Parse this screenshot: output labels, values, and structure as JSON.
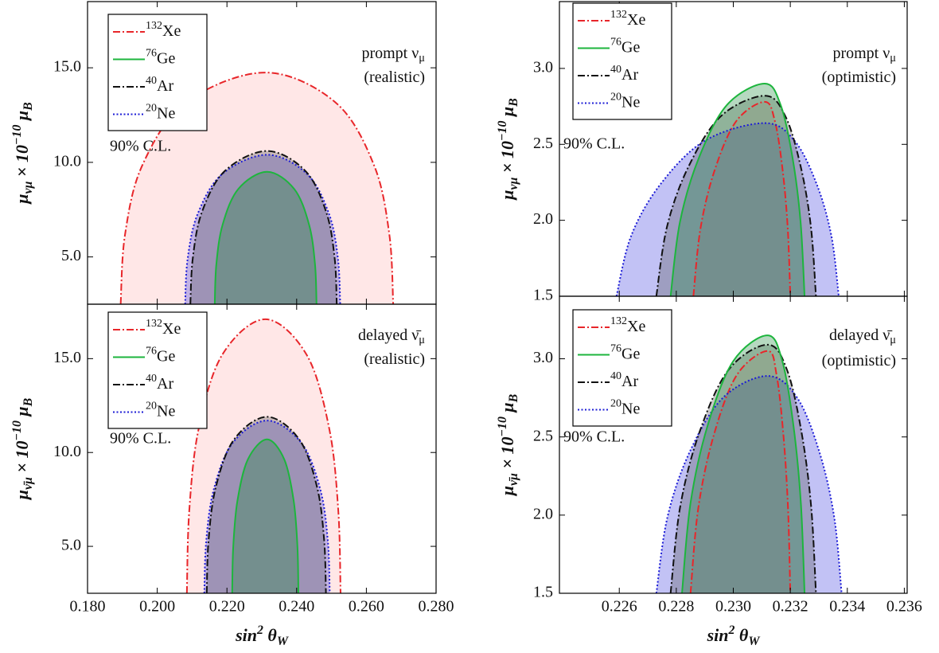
{
  "chart_data": [
    {
      "type": "contour",
      "xlim": [
        0.18,
        0.28
      ],
      "ylim": [
        2.5,
        18.5
      ],
      "xticks": [
        0.18,
        0.2,
        0.22,
        0.24,
        0.26,
        0.28
      ],
      "xtick_labels": false,
      "yticks": [
        {
          "value": 5,
          "label": "5.0"
        },
        {
          "value": 10,
          "label": "10.0"
        },
        {
          "value": 15,
          "label": "15.0"
        }
      ],
      "y_label": [
        {
          "t": "μ"
        },
        {
          "t": "νμ",
          "pos": "sub"
        },
        {
          "t": " × 10"
        },
        {
          "t": "−10",
          "pos": "sup"
        },
        {
          "t": " μ"
        },
        {
          "t": "B",
          "pos": "sub"
        }
      ],
      "annotation": [
        [
          {
            "t": "prompt ν"
          },
          {
            "t": "μ",
            "pos": "sub"
          }
        ],
        [
          {
            "t": "(realistic)"
          }
        ]
      ],
      "cl_label": "90% C.L.",
      "legend": "upper left",
      "series": [
        {
          "mass_number": "132",
          "name": "Xe",
          "color": "#e8262a",
          "fill": "#ffb3b3",
          "dash": "dashdot",
          "x": [
            0.1895,
            0.19075,
            0.19573,
            0.20818,
            0.231,
            0.25119,
            0.26219,
            0.2666,
            0.2677
          ],
          "values": [
            2.5,
            6.175,
            9.85,
            13.16,
            14.75,
            13.16,
            9.85,
            6.175,
            2.5
          ]
        },
        {
          "mass_number": "76",
          "name": "Ge",
          "color": "#1db53d",
          "fill": "#1d8a3a",
          "dash": "solid",
          "x": [
            0.2165,
            0.21695,
            0.21875,
            0.22325,
            0.2315,
            0.23931,
            0.24357,
            0.24527,
            0.2457
          ],
          "values": [
            2.5,
            4.6,
            6.7,
            8.59,
            9.5,
            8.59,
            6.7,
            4.6,
            2.5
          ]
        },
        {
          "mass_number": "40",
          "name": "Ar",
          "color": "#111111",
          "fill": "#555555",
          "dash": "dashdot",
          "x": [
            0.2095,
            0.2102,
            0.2128,
            0.2194,
            0.2315,
            0.2425,
            0.2485,
            0.2509,
            0.2515
          ],
          "values": [
            2.5,
            4.93,
            7.36,
            9.547,
            10.6,
            9.547,
            7.36,
            4.93,
            2.5
          ]
        },
        {
          "mass_number": "20",
          "name": "Ne",
          "color": "#1c1cd6",
          "fill": "#4040e0",
          "dash": "dotted",
          "x": [
            0.208,
            0.2087,
            0.21153,
            0.21858,
            0.2315,
            0.24305,
            0.24935,
            0.25187,
            0.2525
          ],
          "values": [
            2.5,
            4.87,
            7.24,
            9.373,
            10.4,
            9.373,
            7.24,
            4.87,
            2.5
          ]
        }
      ]
    },
    {
      "type": "contour",
      "xlim": [
        0.18,
        0.28
      ],
      "ylim": [
        2.5,
        17.9
      ],
      "xticks": [
        {
          "value": 0.18,
          "label": "0.180"
        },
        {
          "value": 0.2,
          "label": "0.200"
        },
        {
          "value": 0.22,
          "label": "0.220"
        },
        {
          "value": 0.24,
          "label": "0.240"
        },
        {
          "value": 0.26,
          "label": "0.260"
        },
        {
          "value": 0.28,
          "label": "0.280"
        }
      ],
      "yticks": [
        {
          "value": 5,
          "label": "5.0"
        },
        {
          "value": 10,
          "label": "10.0"
        },
        {
          "value": 15,
          "label": "15.0"
        }
      ],
      "x_label": [
        {
          "t": "sin"
        },
        {
          "t": "2",
          "pos": "sup"
        },
        {
          "t": " θ"
        },
        {
          "t": "W",
          "pos": "sub"
        }
      ],
      "y_label": [
        {
          "t": "μ"
        },
        {
          "t": "ν̄μ",
          "pos": "sub"
        },
        {
          "t": " × 10"
        },
        {
          "t": "−10",
          "pos": "sup"
        },
        {
          "t": " μ"
        },
        {
          "t": "B",
          "pos": "sub"
        }
      ],
      "annotation": [
        [
          {
            "t": "delayed ν̄"
          },
          {
            "t": "μ",
            "pos": "sub"
          }
        ],
        [
          {
            "t": "(realistic)"
          }
        ]
      ],
      "cl_label": "90% C.L.",
      "legend": "upper left",
      "series": [
        {
          "mass_number": "132",
          "name": "Xe",
          "color": "#e8262a",
          "fill": "#ffb3b3",
          "dash": "dashdot",
          "x": [
            0.2085,
            0.20918,
            0.21188,
            0.21863,
            0.231,
            0.24288,
            0.24936,
            0.25195,
            0.2526
          ],
          "values": [
            2.5,
            6.88,
            11.26,
            15.2,
            17.1,
            15.2,
            11.26,
            6.88,
            2.5
          ]
        },
        {
          "mass_number": "76",
          "name": "Ge",
          "color": "#1db53d",
          "fill": "#1d8a3a",
          "dash": "solid",
          "x": [
            0.2215,
            0.2218,
            0.223,
            0.226,
            0.2315,
            0.23645,
            0.23915,
            0.24023,
            0.2405
          ],
          "values": [
            2.5,
            4.96,
            7.42,
            9.63,
            10.7,
            9.63,
            7.42,
            4.96,
            2.5
          ]
        },
        {
          "mass_number": "40",
          "name": "Ar",
          "color": "#111111",
          "fill": "#555555",
          "dash": "dashdot",
          "x": [
            0.2142,
            0.21472,
            0.21679,
            0.22199,
            0.2315,
            0.2408,
            0.24587,
            0.24789,
            0.2484
          ],
          "values": [
            2.5,
            5.32,
            8.14,
            10.68,
            11.9,
            10.68,
            8.14,
            5.32,
            2.5
          ]
        },
        {
          "mass_number": "20",
          "name": "Ne",
          "color": "#1c1cd6",
          "fill": "#4040e0",
          "dash": "dotted",
          "x": [
            0.2135,
            0.21404,
            0.2162,
            0.2216,
            0.2315,
            0.2414,
            0.2468,
            0.24896,
            0.2495
          ],
          "values": [
            2.5,
            5.26,
            8.02,
            10.5,
            11.7,
            10.5,
            8.02,
            5.26,
            2.5
          ]
        }
      ]
    },
    {
      "type": "contour",
      "xlim": [
        0.2239,
        0.2361
      ],
      "ylim": [
        1.5,
        3.44
      ],
      "xticks": [
        0.226,
        0.228,
        0.23,
        0.232,
        0.234,
        0.236
      ],
      "xtick_labels": false,
      "yticks": [
        1.5,
        {
          "value": 2,
          "label": "2.0"
        },
        2.5,
        {
          "value": 3,
          "label": "3.0"
        }
      ],
      "y_label": [
        {
          "t": "μ"
        },
        {
          "t": "νμ",
          "pos": "sub"
        },
        {
          "t": " × 10"
        },
        {
          "t": "−10",
          "pos": "sup"
        },
        {
          "t": " μ"
        },
        {
          "t": "B",
          "pos": "sub"
        }
      ],
      "annotation": [
        [
          {
            "t": "prompt ν"
          },
          {
            "t": "μ",
            "pos": "sub"
          }
        ],
        [
          {
            "t": "(optimistic)"
          }
        ]
      ],
      "cl_label": "90% C.L.",
      "legend": "upper left",
      "series": [
        {
          "mass_number": "132",
          "name": "Xe",
          "color": "#e8262a",
          "fill": "#ffb3b3",
          "dash": "dashdot",
          "x": [
            0.2286,
            0.22885,
            0.22935,
            0.2301,
            0.2311,
            0.23146,
            0.23173,
            0.23191,
            0.232
          ],
          "values": [
            1.5,
            1.948,
            2.332,
            2.652,
            2.78,
            2.652,
            2.332,
            1.948,
            1.5
          ]
        },
        {
          "mass_number": "76",
          "name": "Ge",
          "color": "#1db53d",
          "fill": "#1d8a3a",
          "dash": "solid",
          "x": [
            0.2278,
            0.22813,
            0.22879,
            0.22978,
            0.2311,
            0.23166,
            0.23208,
            0.23236,
            0.2325
          ],
          "values": [
            1.5,
            1.99,
            2.41,
            2.76,
            2.9,
            2.76,
            2.41,
            1.99,
            1.5
          ]
        },
        {
          "mass_number": "40",
          "name": "Ar",
          "color": "#111111",
          "fill": "#555555",
          "dash": "dashdot",
          "x": [
            0.2273,
            0.22768,
            0.22844,
            0.22958,
            0.2311,
            0.23182,
            0.23236,
            0.23272,
            0.2329
          ],
          "values": [
            1.5,
            1.962,
            2.358,
            2.688,
            2.82,
            2.688,
            2.358,
            1.962,
            1.5
          ]
        },
        {
          "mass_number": "20",
          "name": "Ne",
          "color": "#1c1cd6",
          "fill": "#4040e0",
          "dash": "dotted",
          "x": [
            0.2259,
            0.22642,
            0.22746,
            0.22902,
            0.2311,
            0.23214,
            0.23292,
            0.23344,
            0.2337
          ],
          "values": [
            1.5,
            1.899,
            2.241,
            2.526,
            2.64,
            2.526,
            2.241,
            1.899,
            1.5
          ]
        }
      ]
    },
    {
      "type": "contour",
      "xlim": [
        0.2239,
        0.2361
      ],
      "ylim": [
        1.5,
        3.4
      ],
      "xticks": [
        {
          "value": 0.226,
          "label": "0.226"
        },
        {
          "value": 0.228,
          "label": "0.228"
        },
        {
          "value": 0.23,
          "label": "0.230"
        },
        {
          "value": 0.232,
          "label": "0.232"
        },
        {
          "value": 0.234,
          "label": "0.234"
        },
        {
          "value": 0.236,
          "label": "0.236"
        }
      ],
      "yticks": [
        1.5,
        {
          "value": 2,
          "label": "2.0"
        },
        2.5,
        {
          "value": 3,
          "label": "3.0"
        }
      ],
      "x_label": [
        {
          "t": "sin"
        },
        {
          "t": "2",
          "pos": "sup"
        },
        {
          "t": " θ"
        },
        {
          "t": "W",
          "pos": "sub"
        }
      ],
      "y_label": [
        {
          "t": "μ"
        },
        {
          "t": "ν̄μ",
          "pos": "sub"
        },
        {
          "t": " × 10"
        },
        {
          "t": "−10",
          "pos": "sup"
        },
        {
          "t": " μ"
        },
        {
          "t": "B",
          "pos": "sub"
        }
      ],
      "annotation": [
        [
          {
            "t": "delayed ν̄"
          },
          {
            "t": "μ",
            "pos": "sub"
          }
        ],
        [
          {
            "t": "(optimistic)"
          }
        ]
      ],
      "cl_label": "90% C.L.",
      "legend": "upper left",
      "series": [
        {
          "mass_number": "132",
          "name": "Xe",
          "color": "#e8262a",
          "fill": "#ffb3b3",
          "dash": "dashdot",
          "x": [
            0.2285,
            0.22877,
            0.22931,
            0.23012,
            0.2312,
            0.23152,
            0.23176,
            0.23192,
            0.232
          ],
          "values": [
            1.5,
            2.043,
            2.508,
            2.895,
            3.05,
            2.895,
            2.508,
            2.043,
            1.5
          ]
        },
        {
          "mass_number": "76",
          "name": "Ge",
          "color": "#1db53d",
          "fill": "#1d8a3a",
          "dash": "solid",
          "x": [
            0.2282,
            0.2285,
            0.2291,
            0.23,
            0.2312,
            0.23172,
            0.23211,
            0.23237,
            0.2325
          ],
          "values": [
            1.5,
            2.078,
            2.573,
            2.985,
            3.15,
            2.985,
            2.573,
            2.078,
            1.5
          ]
        },
        {
          "mass_number": "40",
          "name": "Ar",
          "color": "#111111",
          "fill": "#555555",
          "dash": "dashdot",
          "x": [
            0.2278,
            0.22814,
            0.22882,
            0.22984,
            0.2312,
            0.23188,
            0.23239,
            0.23273,
            0.2329
          ],
          "values": [
            1.5,
            2.057,
            2.534,
            2.931,
            3.09,
            2.931,
            2.534,
            2.057,
            1.5
          ]
        },
        {
          "mass_number": "20",
          "name": "Ne",
          "color": "#1c1cd6",
          "fill": "#4040e0",
          "dash": "dotted",
          "x": [
            0.2273,
            0.22769,
            0.22847,
            0.22964,
            0.2312,
            0.23224,
            0.23302,
            0.23354,
            0.2338
          ],
          "values": [
            1.5,
            1.987,
            2.404,
            2.751,
            2.89,
            2.751,
            2.404,
            1.987,
            1.5
          ]
        }
      ]
    }
  ]
}
